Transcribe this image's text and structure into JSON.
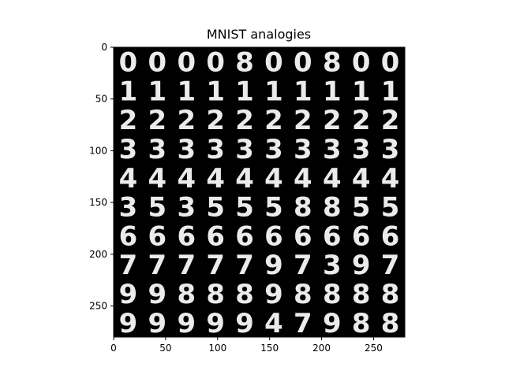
{
  "chart_data": {
    "type": "heatmap",
    "title": "MNIST analogies",
    "xlabel": "",
    "ylabel": "",
    "xlim": [
      0,
      280
    ],
    "ylim": [
      280,
      0
    ],
    "xticks": [
      0,
      50,
      100,
      150,
      200,
      250
    ],
    "yticks": [
      0,
      50,
      100,
      150,
      200,
      250
    ],
    "grid": false,
    "colormap": "gray",
    "background": "#000000",
    "cell_size": 28,
    "rows": [
      [
        "0",
        "0",
        "0",
        "0",
        "8",
        "0",
        "0",
        "8",
        "0",
        "0"
      ],
      [
        "1",
        "1",
        "1",
        "1",
        "1",
        "1",
        "1",
        "1",
        "1",
        "1"
      ],
      [
        "2",
        "2",
        "2",
        "2",
        "2",
        "2",
        "2",
        "2",
        "2",
        "2"
      ],
      [
        "3",
        "3",
        "3",
        "3",
        "3",
        "3",
        "3",
        "3",
        "3",
        "3"
      ],
      [
        "4",
        "4",
        "4",
        "4",
        "4",
        "4",
        "4",
        "4",
        "4",
        "4"
      ],
      [
        "3",
        "5",
        "3",
        "5",
        "5",
        "5",
        "8",
        "8",
        "5",
        "5"
      ],
      [
        "6",
        "6",
        "6",
        "6",
        "6",
        "6",
        "6",
        "6",
        "6",
        "6"
      ],
      [
        "7",
        "7",
        "7",
        "7",
        "7",
        "9",
        "7",
        "3",
        "9",
        "7"
      ],
      [
        "9",
        "9",
        "8",
        "8",
        "8",
        "9",
        "8",
        "8",
        "8",
        "8"
      ],
      [
        "9",
        "9",
        "9",
        "9",
        "9",
        "4",
        "7",
        "9",
        "8",
        "8"
      ]
    ]
  }
}
